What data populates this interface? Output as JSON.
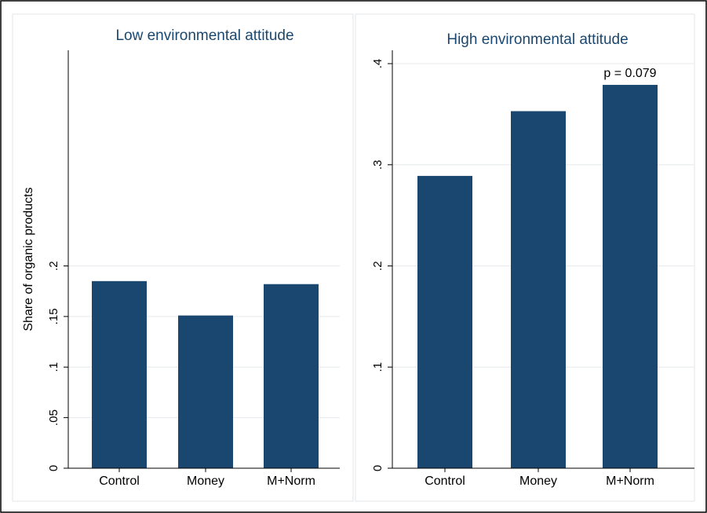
{
  "chart_data": [
    {
      "type": "bar",
      "title": "Low environmental attitude",
      "ylabel": "Share of organic products",
      "categories": [
        "Control",
        "Money",
        "M+Norm"
      ],
      "values": [
        0.185,
        0.151,
        0.182
      ],
      "ylim": [
        0,
        0.41
      ],
      "yticks": [
        0,
        0.05,
        0.1,
        0.15,
        0.2
      ],
      "ytick_labels": [
        "0",
        ".05",
        ".1",
        ".15",
        ".2"
      ],
      "grid": true,
      "annotations": [],
      "bar_color": "#1a476f"
    },
    {
      "type": "bar",
      "title": "High environmental attitude",
      "ylabel": "",
      "categories": [
        "Control",
        "Money",
        "M+Norm"
      ],
      "values": [
        0.289,
        0.353,
        0.379
      ],
      "ylim": [
        0,
        0.41
      ],
      "yticks": [
        0,
        0.1,
        0.2,
        0.3,
        0.4
      ],
      "ytick_labels": [
        "0",
        ".1",
        ".2",
        ".3",
        ".4"
      ],
      "grid": true,
      "annotations": [
        {
          "category": "M+Norm",
          "text": "p = 0.079"
        }
      ],
      "bar_color": "#1a476f"
    }
  ]
}
